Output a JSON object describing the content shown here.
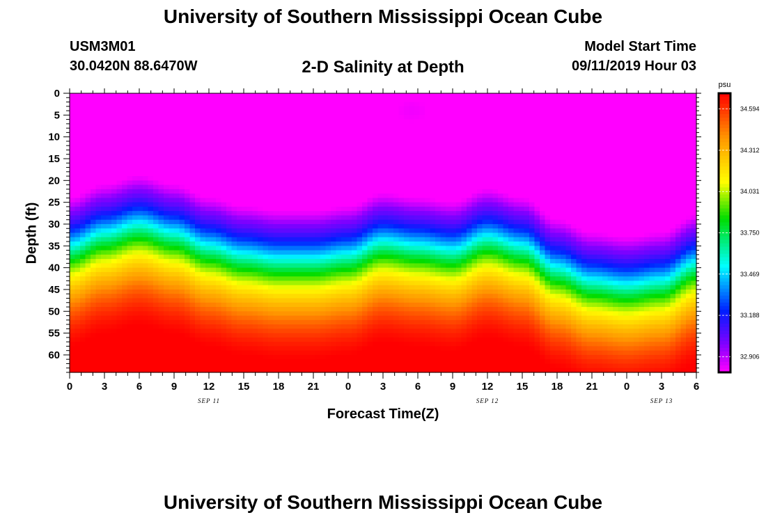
{
  "header": {
    "title_top": "University of Southern Mississippi Ocean Cube",
    "title_bottom": "University of Southern Mississippi Ocean Cube",
    "station_id": "USM3M01",
    "station_location": "30.0420N 88.6470W",
    "plot_title": "2-D Salinity at Depth",
    "model_start_label": "Model Start Time",
    "model_start_value": "09/11/2019 Hour 03"
  },
  "chart_data": {
    "type": "heatmap",
    "title": "2-D Salinity at Depth",
    "xlabel": "Forecast Time(Z)",
    "ylabel": "Depth (ft)",
    "x_ticks": [
      "0",
      "3",
      "6",
      "9",
      "12",
      "15",
      "18",
      "21",
      "0",
      "3",
      "6",
      "9",
      "12",
      "15",
      "18",
      "21",
      "0",
      "3",
      "6"
    ],
    "x_hours_range": [
      0,
      54
    ],
    "date_labels": [
      {
        "hour": 12,
        "label": "SEP 11"
      },
      {
        "hour": 36,
        "label": "SEP 12"
      },
      {
        "hour": 51,
        "label": "SEP 13"
      }
    ],
    "y_ticks": [
      "0",
      "5",
      "10",
      "15",
      "20",
      "25",
      "30",
      "35",
      "40",
      "45",
      "50",
      "55",
      "60"
    ],
    "ylim": [
      0,
      64
    ],
    "colorbar": {
      "unit": "psu",
      "range": [
        32.8,
        34.7
      ],
      "ticks": [
        "34.594",
        "34.312",
        "34.031",
        "33.750",
        "33.469",
        "33.188",
        "32.906"
      ]
    },
    "isohaline_profile_hours": [
      0,
      3,
      6,
      9,
      12,
      15,
      18,
      21,
      24,
      27,
      30,
      33,
      36,
      39,
      42,
      45,
      48,
      51,
      54
    ],
    "isohaline_33_75_depth_ft": [
      35,
      32,
      30,
      32,
      35,
      37,
      38,
      38,
      37,
      34,
      35,
      36,
      33,
      35,
      40,
      43,
      44,
      43,
      39
    ],
    "surface_fresh_patches": [
      {
        "hour": 1.5,
        "depth_ft": 5,
        "salinity": 32.85
      },
      {
        "hour": 29.5,
        "depth_ft": 4,
        "salinity": 32.9
      }
    ]
  }
}
